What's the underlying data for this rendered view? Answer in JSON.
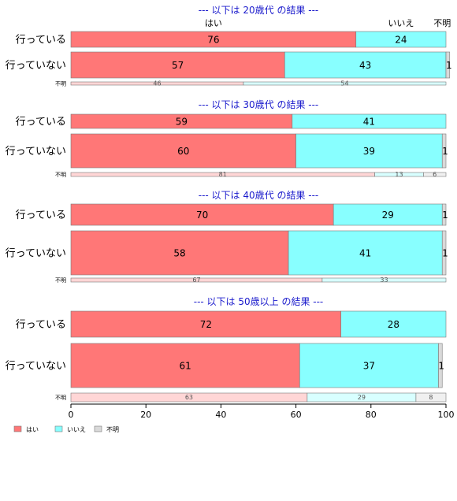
{
  "chart_data": {
    "type": "bar",
    "orientation": "horizontal",
    "stacked": true,
    "xlim": [
      0,
      100
    ],
    "x_ticks": [
      "0",
      "20",
      "40",
      "60",
      "80",
      "100"
    ],
    "series_names": [
      "はい",
      "いいえ",
      "不明"
    ],
    "colors": {
      "はい": "#ff7777",
      "いいえ": "#88ffff",
      "不明": "#d9d9d9",
      "はい_light": "#ffd6d6",
      "いいえ_light": "#d8ffff",
      "不明_light": "#f0f0f0",
      "title": "#1a1acc",
      "border": "#7a7a7a"
    },
    "column_headers": [
      "はい",
      "いいえ",
      "不明"
    ],
    "panels": [
      {
        "title": "--- 以下は 20歳代 の結果 ---",
        "rows": [
          {
            "label": "行っている",
            "values": [
              76,
              24,
              0
            ],
            "labels": [
              "76",
              "24",
              ""
            ]
          },
          {
            "label": "行っていない",
            "values": [
              57,
              43,
              1
            ],
            "labels": [
              "57",
              "43",
              "1"
            ]
          },
          {
            "label": "不明",
            "values": [
              46,
              54,
              0
            ],
            "labels": [
              "46",
              "54",
              ""
            ]
          }
        ]
      },
      {
        "title": "--- 以下は 30歳代 の結果 ---",
        "rows": [
          {
            "label": "行っている",
            "values": [
              59,
              41,
              0
            ],
            "labels": [
              "59",
              "41",
              ""
            ]
          },
          {
            "label": "行っていない",
            "values": [
              60,
              39,
              1
            ],
            "labels": [
              "60",
              "39",
              "1"
            ]
          },
          {
            "label": "不明",
            "values": [
              81,
              13,
              6
            ],
            "labels": [
              "81",
              "13",
              "6"
            ]
          }
        ]
      },
      {
        "title": "--- 以下は 40歳代 の結果 ---",
        "rows": [
          {
            "label": "行っている",
            "values": [
              70,
              29,
              1
            ],
            "labels": [
              "70",
              "29",
              "1"
            ]
          },
          {
            "label": "行っていない",
            "values": [
              58,
              41,
              1
            ],
            "labels": [
              "58",
              "41",
              "1"
            ]
          },
          {
            "label": "不明",
            "values": [
              67,
              33,
              0
            ],
            "labels": [
              "67",
              "33",
              ""
            ]
          }
        ]
      },
      {
        "title": "--- 以下は 50歳以上 の結果 ---",
        "rows": [
          {
            "label": "行っている",
            "values": [
              72,
              28,
              0
            ],
            "labels": [
              "72",
              "28",
              ""
            ]
          },
          {
            "label": "行っていない",
            "values": [
              61,
              37,
              1
            ],
            "labels": [
              "61",
              "37",
              "1"
            ]
          },
          {
            "label": "不明",
            "values": [
              63,
              29,
              8
            ],
            "labels": [
              "63",
              "29",
              "8"
            ]
          }
        ]
      }
    ],
    "legend": {
      "placement": "bottom-left",
      "items": [
        "はい",
        "いいえ",
        "不明"
      ]
    }
  }
}
